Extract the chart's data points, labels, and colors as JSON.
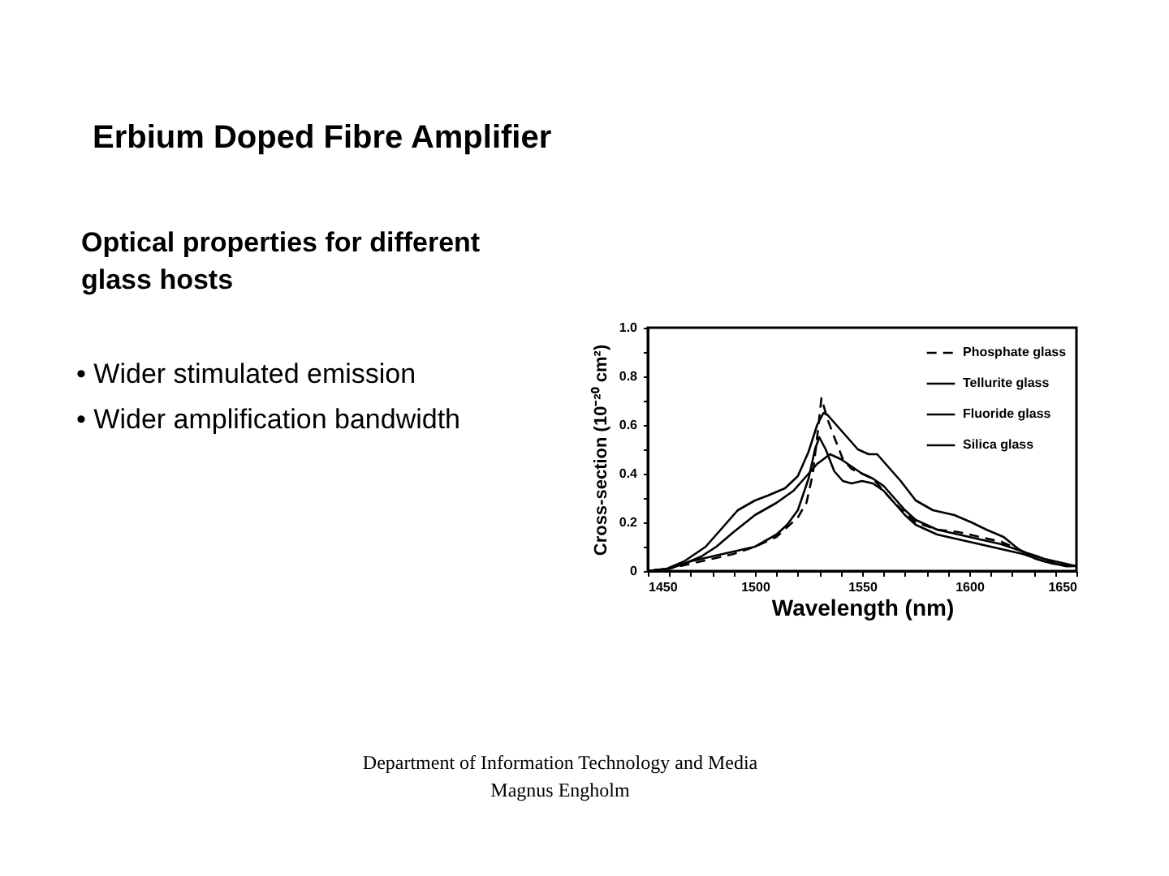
{
  "chart_data": {
    "type": "line",
    "title": "Erbium Doped Fibre Amplifier",
    "subtitle": "Optical properties for different glass hosts",
    "annotations": [
      "• Wider stimulated emission",
      "• Wider amplification bandwidth",
      "Department of Information Technology and Media",
      "Magnus Engholm"
    ],
    "xlabel": "Wavelength (nm)",
    "ylabel": "Cross-section (10⁻²⁰ cm²)",
    "xlim": [
      1450,
      1650
    ],
    "ylim": [
      0,
      1
    ],
    "xticks": [
      1450,
      {
        "value": 1460,
        "label": null
      },
      {
        "value": 1470,
        "label": null
      },
      {
        "value": 1480,
        "label": null
      },
      {
        "value": 1490,
        "label": null
      },
      1500,
      {
        "value": 1510,
        "label": null
      },
      {
        "value": 1520,
        "label": null
      },
      {
        "value": 1530,
        "label": null
      },
      {
        "value": 1540,
        "label": null
      },
      1550,
      {
        "value": 1560,
        "label": null
      },
      {
        "value": 1570,
        "label": null
      },
      {
        "value": 1580,
        "label": null
      },
      {
        "value": 1590,
        "label": null
      },
      1600,
      {
        "value": 1610,
        "label": null
      },
      {
        "value": 1620,
        "label": null
      },
      {
        "value": 1630,
        "label": null
      },
      {
        "value": 1640,
        "label": null
      },
      1650
    ],
    "yticks": [
      0,
      {
        "value": 0.1,
        "label": null
      },
      0.2,
      {
        "value": 0.3,
        "label": null
      },
      0.4,
      {
        "value": 0.5,
        "label": null
      },
      0.6,
      {
        "value": 0.7,
        "label": null
      },
      0.8,
      {
        "value": 0.9,
        "label": null
      },
      {
        "value": 1,
        "label": "1.0"
      }
    ],
    "grid": false,
    "legend": "top right",
    "marker": "none",
    "series": [
      {
        "name": "Phosphate glass",
        "color": "#000000",
        "line_style": "dashed",
        "x": [
          1450,
          1460,
          1470,
          1480,
          1490,
          1500,
          1510,
          1515,
          1520,
          1524,
          1527,
          1529,
          1531,
          1534,
          1537,
          1541,
          1545,
          1550,
          1555,
          1560,
          1565,
          1570,
          1575,
          1585,
          1595,
          1605,
          1615,
          1625,
          1635,
          1645,
          1650
        ],
        "values": [
          0,
          0.01,
          0.03,
          0.05,
          0.07,
          0.1,
          0.14,
          0.18,
          0.22,
          0.28,
          0.4,
          0.55,
          0.71,
          0.62,
          0.55,
          0.46,
          0.42,
          0.4,
          0.38,
          0.33,
          0.28,
          0.24,
          0.2,
          0.17,
          0.16,
          0.14,
          0.12,
          0.08,
          0.05,
          0.02,
          0.02
        ]
      },
      {
        "name": "Tellurite glass",
        "color": "#000000",
        "line_style": "solid",
        "x": [
          1450,
          1459,
          1467,
          1477,
          1485,
          1492,
          1500,
          1506,
          1514,
          1520,
          1525,
          1529,
          1532,
          1534,
          1538,
          1543,
          1548,
          1553,
          1557,
          1560,
          1568,
          1575,
          1583,
          1593,
          1601,
          1608,
          1616,
          1623,
          1631,
          1639,
          1650
        ],
        "values": [
          0,
          0.01,
          0.04,
          0.1,
          0.18,
          0.25,
          0.29,
          0.31,
          0.34,
          0.39,
          0.49,
          0.6,
          0.65,
          0.64,
          0.6,
          0.55,
          0.5,
          0.48,
          0.48,
          0.45,
          0.37,
          0.29,
          0.25,
          0.23,
          0.2,
          0.17,
          0.14,
          0.09,
          0.05,
          0.03,
          0.02
        ]
      },
      {
        "name": "Fluoride glass",
        "color": "#000000",
        "line_style": "solid",
        "x": [
          1450,
          1460,
          1467,
          1475,
          1482,
          1490,
          1500,
          1510,
          1518,
          1524,
          1529,
          1535,
          1540,
          1545,
          1550,
          1555,
          1560,
          1565,
          1570,
          1575,
          1585,
          1595,
          1605,
          1615,
          1625,
          1635,
          1645,
          1650
        ],
        "values": [
          0,
          0.01,
          0.03,
          0.06,
          0.1,
          0.16,
          0.23,
          0.28,
          0.33,
          0.39,
          0.44,
          0.48,
          0.46,
          0.43,
          0.4,
          0.38,
          0.35,
          0.3,
          0.25,
          0.21,
          0.17,
          0.15,
          0.13,
          0.11,
          0.08,
          0.05,
          0.03,
          0.02
        ]
      },
      {
        "name": "Silica glass",
        "color": "#000000",
        "line_style": "solid",
        "x": [
          1450,
          1460,
          1470,
          1480,
          1490,
          1500,
          1510,
          1515,
          1520,
          1525,
          1528,
          1530,
          1533,
          1537,
          1541,
          1545,
          1550,
          1555,
          1560,
          1565,
          1570,
          1575,
          1585,
          1595,
          1605,
          1615,
          1625,
          1635,
          1645,
          1650
        ],
        "values": [
          0,
          0.01,
          0.04,
          0.06,
          0.08,
          0.1,
          0.15,
          0.19,
          0.25,
          0.38,
          0.5,
          0.55,
          0.5,
          0.41,
          0.37,
          0.36,
          0.37,
          0.36,
          0.33,
          0.28,
          0.23,
          0.19,
          0.15,
          0.13,
          0.11,
          0.09,
          0.07,
          0.04,
          0.02,
          0.02
        ]
      }
    ]
  }
}
